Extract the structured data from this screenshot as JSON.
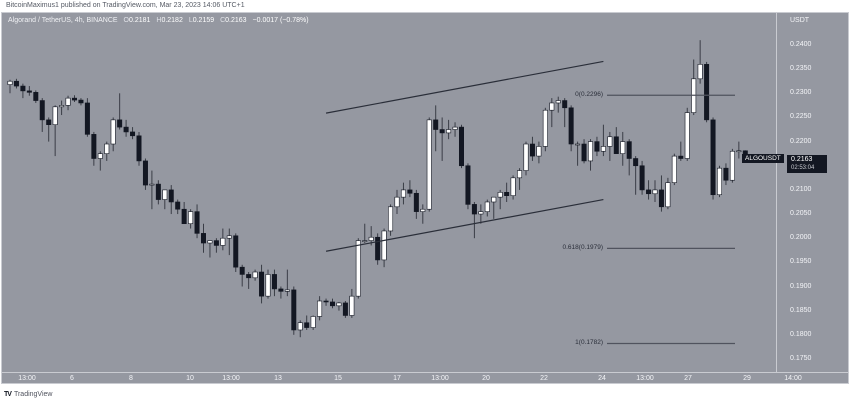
{
  "publisher_line": "BitcoinMaximus1 published on TradingView.com, Mar 23, 2023 14:06 UTC+1",
  "legend": {
    "symbol": "Algorand / TetherUS, 4h, BINANCE",
    "open_label": "O",
    "open": "0.2181",
    "high_label": "H",
    "high": "0.2182",
    "low_label": "L",
    "low": "0.2159",
    "close_label": "C",
    "close": "0.2163",
    "change": "−0.0017 (−0.78%)"
  },
  "price_axis": {
    "unit": "USDT",
    "ticks": [
      "0.2400",
      "0.2350",
      "0.2300",
      "0.2250",
      "0.2200",
      "0.2100",
      "0.2050",
      "0.2000",
      "0.1950",
      "0.1900",
      "0.1850",
      "0.1800",
      "0.1750"
    ]
  },
  "current_price": {
    "symbol": "ALGOUSDT",
    "price": "0.2163",
    "countdown": "02:53:04"
  },
  "time_axis": {
    "ticks": [
      "13:00",
      "6",
      "8",
      "10",
      "13:00",
      "13",
      "15",
      "17",
      "13:00",
      "20",
      "22",
      "24",
      "13:00",
      "27",
      "29",
      "14:00"
    ]
  },
  "fib_levels": [
    {
      "label": "0(0.2296)",
      "ratio": 0,
      "price": 0.2296
    },
    {
      "label": "0.618(0.1979)",
      "ratio": 0.618,
      "price": 0.1979
    },
    {
      "label": "1(0.1782)",
      "ratio": 1,
      "price": 0.1782
    }
  ],
  "brand": {
    "logo": "TV",
    "name": "TradingView"
  },
  "colors": {
    "background": "#9598a1",
    "up_candle": "#ffffff",
    "down_candle": "#131722",
    "wick": "#3a3d46",
    "trendline": "#2a2e39"
  },
  "chart_data": {
    "type": "candlestick",
    "title": "Algorand / TetherUS, 4h, BINANCE",
    "xlabel": "",
    "ylabel": "USDT",
    "ylim": [
      0.172,
      0.243
    ],
    "grid": false,
    "x_tick_labels": [
      "13:00",
      "6",
      "8",
      "10",
      "13:00",
      "13",
      "15",
      "17",
      "13:00",
      "20",
      "22",
      "24",
      "13:00",
      "27",
      "29",
      "14:00"
    ],
    "last": {
      "open": 0.2181,
      "high": 0.2182,
      "low": 0.2159,
      "close": 0.2163,
      "change": -0.0017,
      "change_pct": -0.78
    },
    "channel": {
      "upper": [
        {
          "x_index": 49,
          "price": 0.2259
        },
        {
          "x_index": 92,
          "price": 0.2366
        }
      ],
      "lower": [
        {
          "x_index": 49,
          "price": 0.1973
        },
        {
          "x_index": 92,
          "price": 0.208
        }
      ]
    },
    "fibonacci": [
      {
        "ratio": 0,
        "price": 0.2296
      },
      {
        "ratio": 0.618,
        "price": 0.1979
      },
      {
        "ratio": 1,
        "price": 0.1782
      }
    ],
    "candles": [
      [
        0.2318,
        0.2328,
        0.23,
        0.2325
      ],
      [
        0.2325,
        0.233,
        0.231,
        0.2315
      ],
      [
        0.2315,
        0.232,
        0.229,
        0.2305
      ],
      [
        0.2305,
        0.2315,
        0.2295,
        0.2302
      ],
      [
        0.2302,
        0.2306,
        0.228,
        0.2285
      ],
      [
        0.2285,
        0.229,
        0.222,
        0.2245
      ],
      [
        0.2245,
        0.225,
        0.22,
        0.2235
      ],
      [
        0.2235,
        0.2275,
        0.217,
        0.2272
      ],
      [
        0.2272,
        0.2285,
        0.2255,
        0.2275
      ],
      [
        0.2275,
        0.2295,
        0.2265,
        0.229
      ],
      [
        0.229,
        0.2296,
        0.2282,
        0.2286
      ],
      [
        0.2286,
        0.229,
        0.2275,
        0.228
      ],
      [
        0.228,
        0.229,
        0.221,
        0.2215
      ],
      [
        0.2215,
        0.222,
        0.215,
        0.2165
      ],
      [
        0.2165,
        0.218,
        0.214,
        0.2175
      ],
      [
        0.2175,
        0.22,
        0.216,
        0.2195
      ],
      [
        0.2195,
        0.225,
        0.218,
        0.2245
      ],
      [
        0.2245,
        0.23,
        0.2225,
        0.223
      ],
      [
        0.223,
        0.2245,
        0.221,
        0.222
      ],
      [
        0.222,
        0.223,
        0.2205,
        0.2212
      ],
      [
        0.2212,
        0.222,
        0.215,
        0.216
      ],
      [
        0.216,
        0.2165,
        0.21,
        0.211
      ],
      [
        0.211,
        0.214,
        0.206,
        0.2112
      ],
      [
        0.2112,
        0.212,
        0.207,
        0.208
      ],
      [
        0.208,
        0.21,
        0.206,
        0.21
      ],
      [
        0.21,
        0.211,
        0.205,
        0.2075
      ],
      [
        0.2075,
        0.208,
        0.205,
        0.206
      ],
      [
        0.206,
        0.2075,
        0.203,
        0.203
      ],
      [
        0.203,
        0.206,
        0.202,
        0.2055
      ],
      [
        0.2055,
        0.207,
        0.2,
        0.201
      ],
      [
        0.201,
        0.203,
        0.197,
        0.199
      ],
      [
        0.199,
        0.1995,
        0.196,
        0.1995
      ],
      [
        0.1995,
        0.2,
        0.197,
        0.1985
      ],
      [
        0.1985,
        0.202,
        0.1975,
        0.2
      ],
      [
        0.2,
        0.202,
        0.1965,
        0.2005
      ],
      [
        0.2005,
        0.201,
        0.193,
        0.194
      ],
      [
        0.194,
        0.1945,
        0.19,
        0.1925
      ],
      [
        0.1925,
        0.193,
        0.1895,
        0.1918
      ],
      [
        0.1918,
        0.1935,
        0.1912,
        0.193
      ],
      [
        0.193,
        0.1945,
        0.1865,
        0.188
      ],
      [
        0.188,
        0.1935,
        0.1875,
        0.1925
      ],
      [
        0.1925,
        0.1935,
        0.188,
        0.1895
      ],
      [
        0.1895,
        0.19,
        0.1875,
        0.189
      ],
      [
        0.189,
        0.1935,
        0.188,
        0.1893
      ],
      [
        0.1893,
        0.19,
        0.18,
        0.181
      ],
      [
        0.181,
        0.183,
        0.1795,
        0.1825
      ],
      [
        0.1825,
        0.184,
        0.181,
        0.1815
      ],
      [
        0.1815,
        0.184,
        0.181,
        0.1838
      ],
      [
        0.1838,
        0.188,
        0.183,
        0.187
      ],
      [
        0.187,
        0.1875,
        0.186,
        0.1868
      ],
      [
        0.1868,
        0.1875,
        0.1855,
        0.186
      ],
      [
        0.186,
        0.1868,
        0.185,
        0.1866
      ],
      [
        0.1866,
        0.187,
        0.1835,
        0.184
      ],
      [
        0.184,
        0.1895,
        0.1835,
        0.188
      ],
      [
        0.188,
        0.2,
        0.1875,
        0.1995
      ],
      [
        0.1995,
        0.203,
        0.199,
        0.1995
      ],
      [
        0.1995,
        0.2025,
        0.1985,
        0.2002
      ],
      [
        0.2002,
        0.201,
        0.1945,
        0.1955
      ],
      [
        0.1955,
        0.202,
        0.194,
        0.2015
      ],
      [
        0.2015,
        0.207,
        0.2005,
        0.2065
      ],
      [
        0.2065,
        0.21,
        0.205,
        0.2085
      ],
      [
        0.2085,
        0.2115,
        0.207,
        0.21
      ],
      [
        0.21,
        0.212,
        0.2085,
        0.2093
      ],
      [
        0.2093,
        0.21,
        0.204,
        0.2055
      ],
      [
        0.2055,
        0.207,
        0.203,
        0.206
      ],
      [
        0.206,
        0.225,
        0.2055,
        0.2245
      ],
      [
        0.2245,
        0.2275,
        0.218,
        0.2225
      ],
      [
        0.2225,
        0.225,
        0.216,
        0.2218
      ],
      [
        0.2218,
        0.2245,
        0.2205,
        0.2225
      ],
      [
        0.2225,
        0.224,
        0.221,
        0.223
      ],
      [
        0.223,
        0.2235,
        0.2145,
        0.215
      ],
      [
        0.215,
        0.2155,
        0.206,
        0.207
      ],
      [
        0.207,
        0.2075,
        0.2,
        0.205
      ],
      [
        0.205,
        0.207,
        0.203,
        0.2055
      ],
      [
        0.2055,
        0.208,
        0.2045,
        0.2075
      ],
      [
        0.2075,
        0.2085,
        0.204,
        0.2085
      ],
      [
        0.2085,
        0.21,
        0.206,
        0.2095
      ],
      [
        0.2095,
        0.2115,
        0.2075,
        0.2088
      ],
      [
        0.2088,
        0.213,
        0.208,
        0.2125
      ],
      [
        0.2125,
        0.2145,
        0.21,
        0.214
      ],
      [
        0.214,
        0.22,
        0.213,
        0.2195
      ],
      [
        0.2195,
        0.221,
        0.216,
        0.217
      ],
      [
        0.217,
        0.22,
        0.2155,
        0.219
      ],
      [
        0.219,
        0.227,
        0.218,
        0.2265
      ],
      [
        0.2265,
        0.229,
        0.223,
        0.228
      ],
      [
        0.228,
        0.2293,
        0.226,
        0.2285
      ],
      [
        0.2285,
        0.229,
        0.223,
        0.227
      ],
      [
        0.227,
        0.2275,
        0.218,
        0.2195
      ],
      [
        0.2195,
        0.22,
        0.215,
        0.2195
      ],
      [
        0.2195,
        0.2205,
        0.2155,
        0.216
      ],
      [
        0.216,
        0.2205,
        0.214,
        0.22
      ],
      [
        0.22,
        0.221,
        0.217,
        0.218
      ],
      [
        0.218,
        0.2235,
        0.217,
        0.219
      ],
      [
        0.219,
        0.222,
        0.216,
        0.221
      ],
      [
        0.221,
        0.223,
        0.218,
        0.2175
      ],
      [
        0.2175,
        0.222,
        0.215,
        0.22
      ],
      [
        0.22,
        0.2205,
        0.213,
        0.2165
      ],
      [
        0.2165,
        0.217,
        0.209,
        0.215
      ],
      [
        0.215,
        0.216,
        0.209,
        0.21
      ],
      [
        0.21,
        0.212,
        0.208,
        0.2092
      ],
      [
        0.2092,
        0.212,
        0.2075,
        0.21
      ],
      [
        0.21,
        0.213,
        0.2055,
        0.2065
      ],
      [
        0.2065,
        0.2125,
        0.206,
        0.2115
      ],
      [
        0.2115,
        0.2175,
        0.211,
        0.217
      ],
      [
        0.217,
        0.22,
        0.216,
        0.2165
      ],
      [
        0.2165,
        0.227,
        0.216,
        0.226
      ],
      [
        0.226,
        0.237,
        0.2255,
        0.233
      ],
      [
        0.233,
        0.241,
        0.232,
        0.236
      ],
      [
        0.236,
        0.2365,
        0.224,
        0.2245
      ],
      [
        0.2245,
        0.225,
        0.208,
        0.209
      ],
      [
        0.209,
        0.215,
        0.2085,
        0.2145
      ],
      [
        0.2145,
        0.2155,
        0.211,
        0.212
      ],
      [
        0.212,
        0.2185,
        0.2115,
        0.218
      ],
      [
        0.218,
        0.22,
        0.2165,
        0.2181
      ],
      [
        0.2181,
        0.2182,
        0.2159,
        0.2163
      ]
    ]
  }
}
